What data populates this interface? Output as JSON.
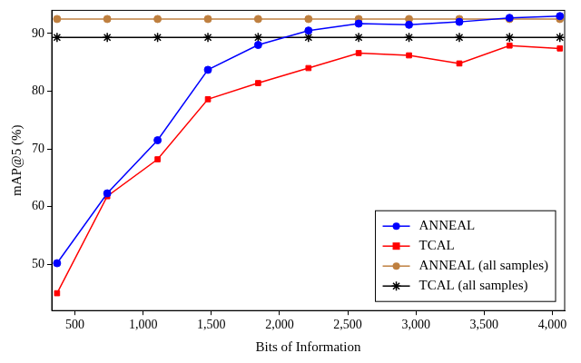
{
  "chart_data": {
    "type": "line",
    "x_label": "Bits of Information",
    "y_label": "mAP@5 (%)",
    "x": [
      369,
      737,
      1106,
      1475,
      1843,
      2212,
      2580,
      2949,
      3318,
      3686,
      4055
    ],
    "xlim": [
      330,
      4090
    ],
    "xticks": [
      500,
      {
        "value": 1000,
        "label": "1,000"
      },
      {
        "value": 1500,
        "label": "1,500"
      },
      {
        "value": 2000,
        "label": "2,000"
      },
      {
        "value": 2500,
        "label": "2,500"
      },
      {
        "value": 3000,
        "label": "3,000"
      },
      {
        "value": 3500,
        "label": "3,500"
      },
      {
        "value": 4000,
        "label": "4,000"
      }
    ],
    "ylim": [
      42,
      94
    ],
    "yticks": [
      50,
      60,
      70,
      80,
      90
    ],
    "grid": false,
    "legend": "lower right",
    "series": [
      {
        "name": "ANNEAL",
        "color": "#0000ff",
        "marker": "circle",
        "values": [
          50.2,
          62.3,
          71.5,
          83.7,
          88.0,
          90.5,
          91.7,
          91.5,
          92.0,
          92.7,
          93.0
        ]
      },
      {
        "name": "TCAL",
        "color": "#ff0000",
        "marker": "square",
        "values": [
          45.0,
          61.8,
          68.2,
          78.6,
          81.4,
          84.0,
          86.6,
          86.2,
          84.8,
          87.9,
          87.4
        ]
      },
      {
        "name": "ANNEAL (all samples)",
        "color": "#bf8040",
        "marker": "circle",
        "values": [
          92.5,
          92.5,
          92.5,
          92.5,
          92.5,
          92.5,
          92.5,
          92.5,
          92.5,
          92.5,
          92.5
        ]
      },
      {
        "name": "TCAL (all samples)",
        "color": "#000000",
        "marker": "star",
        "values": [
          89.3,
          89.3,
          89.3,
          89.3,
          89.3,
          89.3,
          89.3,
          89.3,
          89.3,
          89.3,
          89.3
        ]
      }
    ]
  }
}
